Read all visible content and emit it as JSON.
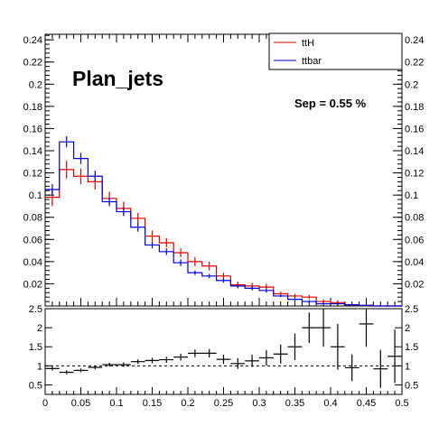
{
  "chart_data": [
    {
      "type": "line",
      "title": "Plan_jets",
      "annotation": "Sep = 0.55 %",
      "xlim": [
        0,
        0.5
      ],
      "ylim": [
        0,
        0.245
      ],
      "x_ticks": [
        0,
        0.05,
        0.1,
        0.15,
        0.2,
        0.25,
        0.3,
        0.35,
        0.4,
        0.45,
        0.5
      ],
      "y_ticks": [
        0.02,
        0.04,
        0.06,
        0.08,
        0.1,
        0.12,
        0.14,
        0.16,
        0.18,
        0.2,
        0.22,
        0.24
      ],
      "legend_position": "top-right",
      "bin_edges": [
        0,
        0.02,
        0.04,
        0.06,
        0.08,
        0.1,
        0.12,
        0.14,
        0.16,
        0.18,
        0.2,
        0.22,
        0.24,
        0.26,
        0.28,
        0.3,
        0.32,
        0.34,
        0.36,
        0.38,
        0.4,
        0.42,
        0.44,
        0.46,
        0.48,
        0.5
      ],
      "series": [
        {
          "name": "ttH",
          "color": "#dd0000",
          "values": [
            0.098,
            0.123,
            0.117,
            0.112,
            0.097,
            0.088,
            0.079,
            0.063,
            0.057,
            0.048,
            0.04,
            0.036,
            0.027,
            0.019,
            0.018,
            0.017,
            0.011,
            0.009,
            0.008,
            0.004,
            0.003,
            0.001,
            0.0005,
            0,
            0
          ],
          "errors": [
            0.008,
            0.008,
            0.007,
            0.007,
            0.006,
            0.006,
            0.005,
            0.005,
            0.004,
            0.004,
            0.004,
            0.004,
            0.003,
            0.003,
            0.003,
            0.003,
            0.002,
            0.002,
            0.002,
            0.002,
            0.002,
            0.001,
            0.001,
            0,
            0
          ]
        },
        {
          "name": "ttbar",
          "color": "#0000cc",
          "values": [
            0.105,
            0.148,
            0.133,
            0.117,
            0.094,
            0.085,
            0.071,
            0.055,
            0.049,
            0.039,
            0.03,
            0.027,
            0.023,
            0.018,
            0.016,
            0.014,
            0.009,
            0.006,
            0.004,
            0.002,
            0.002,
            0.001,
            0.0005,
            0,
            0
          ],
          "errors": [
            0.005,
            0.005,
            0.005,
            0.005,
            0.004,
            0.004,
            0.004,
            0.003,
            0.003,
            0.003,
            0.002,
            0.002,
            0.002,
            0.002,
            0.002,
            0.002,
            0.001,
            0.001,
            0.001,
            0.001,
            0.001,
            0.001,
            0.0005,
            0,
            0
          ]
        }
      ]
    },
    {
      "type": "scatter",
      "title": "",
      "xlim": [
        0,
        0.5
      ],
      "ylim": [
        0.25,
        2.5
      ],
      "x_ticks": [
        0,
        0.05,
        0.1,
        0.15,
        0.2,
        0.25,
        0.3,
        0.35,
        0.4,
        0.45,
        0.5
      ],
      "x_tick_labels": [
        "0",
        "0.05",
        "0.1",
        "0.15",
        "0.2",
        "0.25",
        "0.3",
        "0.35",
        "0.4",
        "0.45",
        "0.5"
      ],
      "y_ticks": [
        0.5,
        1,
        1.5,
        2,
        2.5
      ],
      "y_tick_labels": [
        "0.5",
        "1",
        "1.5",
        "2",
        "2.5"
      ],
      "reference_line": 1,
      "bin_edges": [
        0,
        0.02,
        0.04,
        0.06,
        0.08,
        0.1,
        0.12,
        0.14,
        0.16,
        0.18,
        0.2,
        0.22,
        0.24,
        0.26,
        0.28,
        0.3,
        0.32,
        0.34,
        0.36,
        0.38,
        0.4,
        0.42,
        0.44,
        0.46,
        0.48
      ],
      "values": [
        0.93,
        0.83,
        0.88,
        0.96,
        1.03,
        1.03,
        1.11,
        1.14,
        1.16,
        1.23,
        1.33,
        1.33,
        1.17,
        1.06,
        1.13,
        1.21,
        1.31,
        1.5,
        2.0,
        2.0,
        1.5,
        0.95,
        2.1,
        0.92,
        1.25
      ],
      "xerr": [
        0.01,
        0.01,
        0.01,
        0.01,
        0.01,
        0.01,
        0.01,
        0.01,
        0.01,
        0.01,
        0.01,
        0.01,
        0.01,
        0.01,
        0.01,
        0.01,
        0.01,
        0.01,
        0.01,
        0.01,
        0.01,
        0.01,
        0.01,
        0.01,
        0.01
      ],
      "points": [
        {
          "x": 0.01,
          "y": 0.93,
          "yerr": 0.05,
          "xerr": 0.01
        },
        {
          "x": 0.03,
          "y": 0.83,
          "yerr": 0.05,
          "xerr": 0.01
        },
        {
          "x": 0.05,
          "y": 0.88,
          "yerr": 0.05,
          "xerr": 0.01
        },
        {
          "x": 0.07,
          "y": 0.96,
          "yerr": 0.05,
          "xerr": 0.01
        },
        {
          "x": 0.09,
          "y": 1.03,
          "yerr": 0.05,
          "xerr": 0.01
        },
        {
          "x": 0.11,
          "y": 1.03,
          "yerr": 0.06,
          "xerr": 0.01
        },
        {
          "x": 0.13,
          "y": 1.11,
          "yerr": 0.06,
          "xerr": 0.01
        },
        {
          "x": 0.15,
          "y": 1.14,
          "yerr": 0.07,
          "xerr": 0.01
        },
        {
          "x": 0.17,
          "y": 1.16,
          "yerr": 0.08,
          "xerr": 0.01
        },
        {
          "x": 0.19,
          "y": 1.23,
          "yerr": 0.09,
          "xerr": 0.01
        },
        {
          "x": 0.21,
          "y": 1.33,
          "yerr": 0.1,
          "xerr": 0.01
        },
        {
          "x": 0.23,
          "y": 1.33,
          "yerr": 0.11,
          "xerr": 0.01
        },
        {
          "x": 0.25,
          "y": 1.17,
          "yerr": 0.12,
          "xerr": 0.01
        },
        {
          "x": 0.27,
          "y": 1.06,
          "yerr": 0.14,
          "xerr": 0.01
        },
        {
          "x": 0.29,
          "y": 1.13,
          "yerr": 0.16,
          "xerr": 0.01
        },
        {
          "x": 0.31,
          "y": 1.21,
          "yerr": 0.2,
          "xerr": 0.01
        },
        {
          "x": 0.33,
          "y": 1.31,
          "yerr": 0.25,
          "xerr": 0.01
        },
        {
          "x": 0.35,
          "y": 1.5,
          "yerr": 0.35,
          "xerr": 0.01
        },
        {
          "x": 0.37,
          "y": 2.0,
          "yerr": 0.4,
          "xerr": 0.01
        },
        {
          "x": 0.39,
          "y": 2.0,
          "yerr": 0.5,
          "xerr": 0.01
        },
        {
          "x": 0.41,
          "y": 1.5,
          "yerr": 0.6,
          "xerr": 0.01
        },
        {
          "x": 0.43,
          "y": 0.95,
          "yerr": 0.35,
          "xerr": 0.01
        },
        {
          "x": 0.45,
          "y": 2.1,
          "yerr": 0.6,
          "xerr": 0.01
        },
        {
          "x": 0.47,
          "y": 0.92,
          "yerr": 0.5,
          "xerr": 0.01
        },
        {
          "x": 0.49,
          "y": 1.25,
          "yerr": 0.7,
          "xerr": 0.01
        }
      ]
    }
  ]
}
